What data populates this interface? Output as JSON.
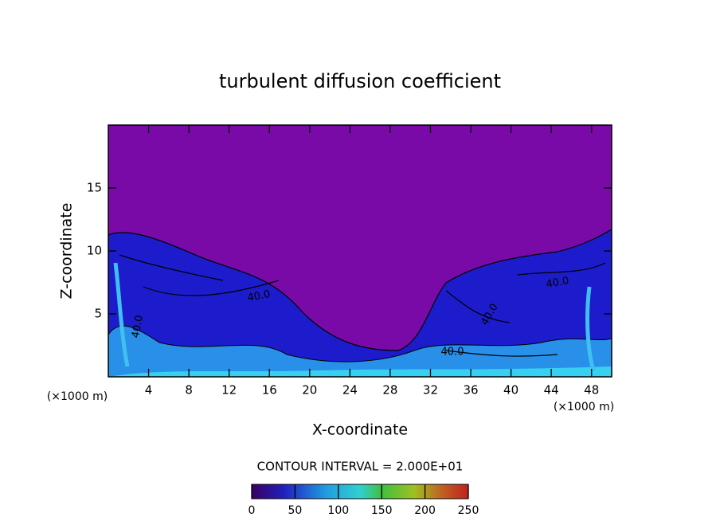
{
  "chart_data": {
    "type": "contour",
    "title": "turbulent diffusion coefficient",
    "x_label": "X-coordinate",
    "y_label": "Z-coordinate",
    "x_unit": "(×1000 m)",
    "xlim": [
      0,
      50
    ],
    "xticks": [
      4,
      8,
      12,
      16,
      20,
      24,
      28,
      32,
      36,
      40,
      44,
      48
    ],
    "ylim": [
      0,
      20
    ],
    "yticks": [
      5,
      10,
      15
    ],
    "contour_interval_text": "CONTOUR INTERVAL = 2.000E+01",
    "contour_labels": [
      "40.0",
      "40.0",
      "40.0",
      "40.0",
      "40.0"
    ],
    "colorbar": {
      "lim": [
        0,
        250
      ],
      "ticks": [
        0,
        50,
        100,
        150,
        200,
        250
      ]
    }
  }
}
